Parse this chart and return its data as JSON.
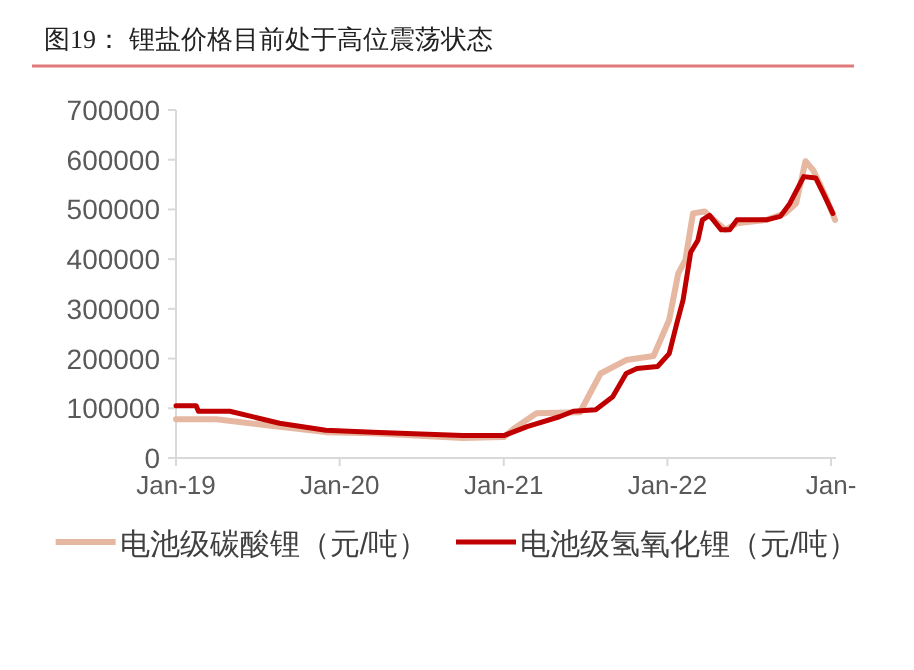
{
  "chart_data": {
    "type": "line",
    "title": "图19：  锂盐价格目前处于高位震荡状态",
    "xlim": [
      "2019-01-01",
      "2023-01-12"
    ],
    "xticks": [
      {
        "value": "2019-01-01",
        "label": "Jan-19"
      },
      {
        "value": "2020-01-01",
        "label": "Jan-20"
      },
      {
        "value": "2021-01-01",
        "label": "Jan-21"
      },
      {
        "value": "2022-01-01",
        "label": "Jan-22"
      },
      {
        "value": "2023-01-01",
        "label": "Jan-"
      }
    ],
    "ylim": [
      0,
      700000
    ],
    "yticks": [
      0,
      100000,
      200000,
      300000,
      400000,
      500000,
      600000,
      700000
    ],
    "grid": false,
    "legend": "bottom",
    "marker": "none",
    "line_style": "solid",
    "series": [
      {
        "name": "电池级碳酸锂（元/吨）",
        "color": "#e6b8a2",
        "x": [
          "2019-01-01",
          "2019-04-01",
          "2019-08-01",
          "2019-12-01",
          "2020-03-15",
          "2020-10-01",
          "2021-01-01",
          "2021-01-25",
          "2021-03-15",
          "2021-06-20",
          "2021-08-05",
          "2021-10-01",
          "2021-12-01",
          "2022-01-05",
          "2022-01-25",
          "2022-02-10",
          "2022-02-27",
          "2022-03-25",
          "2022-04-15",
          "2022-05-10",
          "2022-06-05",
          "2022-08-10",
          "2022-09-20",
          "2022-10-15",
          "2022-11-05",
          "2022-11-22",
          "2022-12-20",
          "2023-01-10"
        ],
        "values": [
          78000,
          78000,
          65000,
          52000,
          50000,
          40000,
          42000,
          60000,
          90000,
          92000,
          170000,
          197000,
          205000,
          278000,
          371000,
          398000,
          492000,
          496000,
          479000,
          459000,
          472000,
          479000,
          492000,
          512000,
          597000,
          579000,
          526000,
          479000
        ]
      },
      {
        "name": "电池级氢氧化锂（元/吨）",
        "color": "#c00000",
        "x": [
          "2019-01-01",
          "2019-02-15",
          "2019-02-20",
          "2019-05-01",
          "2019-08-20",
          "2019-12-01",
          "2020-03-15",
          "2020-10-01",
          "2021-01-01",
          "2021-02-22",
          "2021-05-05",
          "2021-06-05",
          "2021-07-25",
          "2021-09-01",
          "2021-10-01",
          "2021-10-25",
          "2021-12-10",
          "2022-01-05",
          "2022-01-22",
          "2022-02-05",
          "2022-02-22",
          "2022-03-10",
          "2022-03-20",
          "2022-04-05",
          "2022-05-01",
          "2022-05-20",
          "2022-06-05",
          "2022-08-10",
          "2022-09-10",
          "2022-10-01",
          "2022-11-01",
          "2022-11-28",
          "2022-12-15",
          "2023-01-05"
        ],
        "values": [
          105000,
          105000,
          94000,
          94000,
          70000,
          56000,
          52000,
          45000,
          45000,
          63000,
          83000,
          94000,
          97000,
          123000,
          170000,
          180000,
          184000,
          210000,
          271000,
          318000,
          414000,
          438000,
          479000,
          488000,
          459000,
          459000,
          479000,
          479000,
          486000,
          512000,
          566000,
          563000,
          532000,
          492000
        ]
      }
    ]
  }
}
